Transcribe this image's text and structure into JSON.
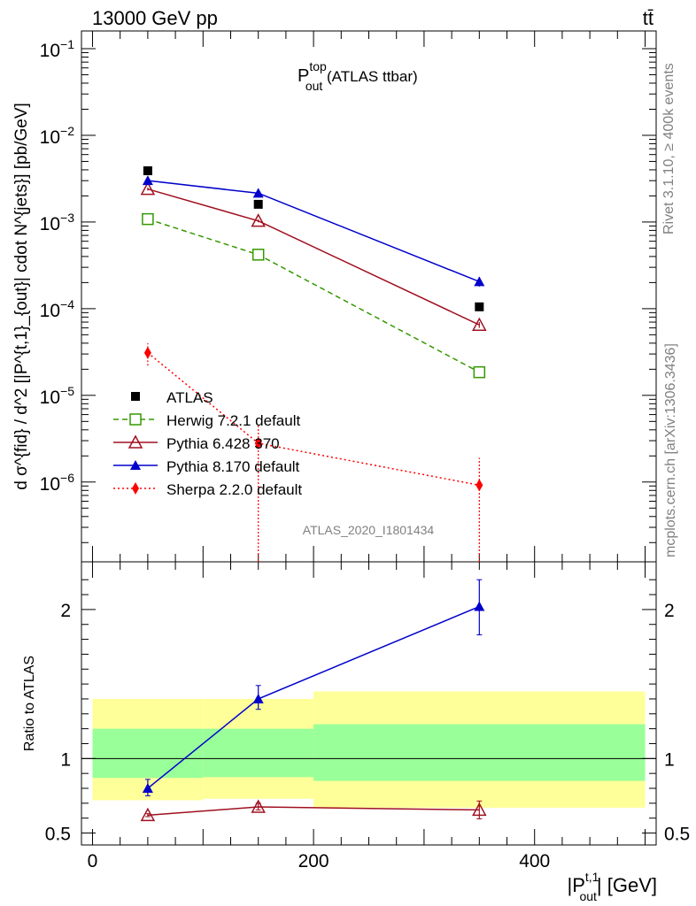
{
  "header": {
    "left_title": "13000 GeV pp",
    "right_title": "tt̄"
  },
  "side_text": {
    "rivet": "Rivet 3.1.10, ≥ 400k events",
    "mcplots": "mcplots.cern.ch [arXiv:1306.3436]"
  },
  "watermark": "ATLAS_2020_I1801434",
  "chart_data": {
    "type": "line",
    "title": {
      "base": "P",
      "sup": "top",
      "sub": "out",
      "suffix": " (ATLAS ttbar)"
    },
    "ylabel_main": "d σ^{fid} / d^2 [|P^{t,1}_{out}| cdot N^{jets}] [pb/GeV]",
    "ylabel_ratio": "Ratio to ATLAS",
    "xlabel": {
      "pre": "|P",
      "sup": "t,1",
      "sub": "out",
      "post": "| [GeV]"
    },
    "yscale_main": "log",
    "ylim_main": [
      1.2e-07,
      0.16
    ],
    "ylim_ratio": [
      0.42,
      2.32
    ],
    "xlim": [
      -10,
      510
    ],
    "x_ticks": [
      0,
      200,
      400
    ],
    "y_ticks_main": [
      {
        "value": 0.1,
        "base": "10",
        "exp": "−1"
      },
      {
        "value": 0.01,
        "base": "10",
        "exp": "−2"
      },
      {
        "value": 0.001,
        "base": "10",
        "exp": "−3"
      },
      {
        "value": 0.0001,
        "base": "10",
        "exp": "−4"
      },
      {
        "value": 1e-05,
        "base": "10",
        "exp": "−5"
      },
      {
        "value": 1e-06,
        "base": "10",
        "exp": "−6"
      }
    ],
    "y_ticks_ratio": [
      {
        "value": 2,
        "label": "2"
      },
      {
        "value": 1,
        "label": "1"
      },
      {
        "value": 0.5,
        "label": "0.5"
      }
    ],
    "bins": [
      {
        "low": 0,
        "high": 100
      },
      {
        "low": 100,
        "high": 200
      },
      {
        "low": 200,
        "high": 500
      }
    ],
    "x": [
      50,
      150,
      350
    ],
    "reference": {
      "name": "ATLAS",
      "values": [
        0.0039,
        0.0016,
        0.000105
      ]
    },
    "ratio_bands": {
      "stat_sys_inner": [
        [
          0.87,
          1.2
        ],
        [
          0.875,
          1.2
        ],
        [
          0.85,
          1.23
        ]
      ],
      "total_outer": [
        [
          0.72,
          1.4
        ],
        [
          0.73,
          1.4
        ],
        [
          0.67,
          1.45
        ]
      ]
    },
    "series": [
      {
        "name": "Herwig 7.2.1 default",
        "color": "#339900",
        "marker": "open-square",
        "dash": "dashed",
        "values": [
          0.00108,
          0.00042,
          1.85e-05
        ],
        "err_low": [
          0.00103,
          0.0004,
          1.65e-05
        ],
        "err_high": [
          0.00113,
          0.00044,
          2.05e-05
        ],
        "ratio": null
      },
      {
        "name": "Pythia 6.428 370",
        "color": "#a01020",
        "marker": "open-triangle",
        "dash": "solid",
        "values": [
          0.0024,
          0.00103,
          6.5e-05
        ],
        "err_low": [
          0.0023,
          0.00099,
          6e-05
        ],
        "err_high": [
          0.0025,
          0.00107,
          7e-05
        ],
        "ratio": [
          0.62,
          0.675,
          0.655
        ],
        "ratio_err_low": [
          0.61,
          0.655,
          0.595
        ],
        "ratio_err_high": [
          0.63,
          0.7,
          0.715
        ]
      },
      {
        "name": "Pythia 8.170 default",
        "color": "#0000cc",
        "marker": "filled-triangle",
        "dash": "solid",
        "values": [
          0.003,
          0.00215,
          0.000205
        ],
        "err_low": [
          0.0029,
          0.00205,
          0.00018
        ],
        "err_high": [
          0.0031,
          0.00225,
          0.00023
        ],
        "ratio": [
          0.8,
          1.4,
          2.02
        ],
        "ratio_err_low": [
          0.75,
          1.33,
          1.83
        ],
        "ratio_err_high": [
          0.86,
          1.49,
          2.2
        ]
      },
      {
        "name": "Sherpa 2.2.0 default",
        "color": "#ff0000",
        "marker": "filled-diamond",
        "dash": "dotted",
        "values": [
          3.1e-05,
          2.8e-06,
          9.2e-07
        ],
        "err_low": [
          2.2e-05,
          1e-09,
          1e-09
        ],
        "err_high": [
          4e-05,
          4.5e-06,
          1.9e-06
        ],
        "ratio": null
      }
    ]
  }
}
